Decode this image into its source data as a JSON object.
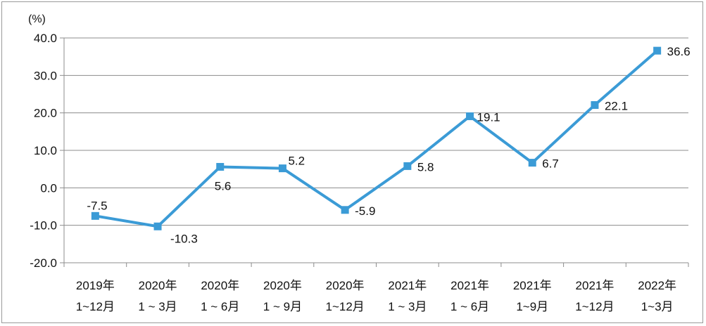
{
  "chart_data": {
    "type": "line",
    "unit_label": "(%)",
    "categories": [
      [
        "2019年",
        "1~12月"
      ],
      [
        "2020年",
        "1 ~ 3月"
      ],
      [
        "2020年",
        "1 ~ 6月"
      ],
      [
        "2020年",
        "1 ~ 9月"
      ],
      [
        "2020年",
        "1~12月"
      ],
      [
        "2021年",
        "1 ~ 3月"
      ],
      [
        "2021年",
        "1 ~ 6月"
      ],
      [
        "2021年",
        "1~9月"
      ],
      [
        "2021年",
        "1~12月"
      ],
      [
        "2022年",
        "1~3月"
      ]
    ],
    "series": [
      {
        "values": [
          -7.5,
          -10.3,
          5.6,
          5.2,
          -5.9,
          5.8,
          19.1,
          6.7,
          22.1,
          36.6
        ],
        "data_labels": [
          "-7.5",
          "-10.3",
          "5.6",
          "5.2",
          "-5.9",
          "5.8",
          "19.1",
          "6.7",
          "22.1",
          "36.6"
        ],
        "color": "#3b9bd6"
      }
    ],
    "ylim": [
      -20,
      40
    ],
    "y_ticks": [
      "-20.0",
      "-10.0",
      "0.0",
      "10.0",
      "20.0",
      "30.0",
      "40.0"
    ],
    "grid": true,
    "legend": "none"
  }
}
